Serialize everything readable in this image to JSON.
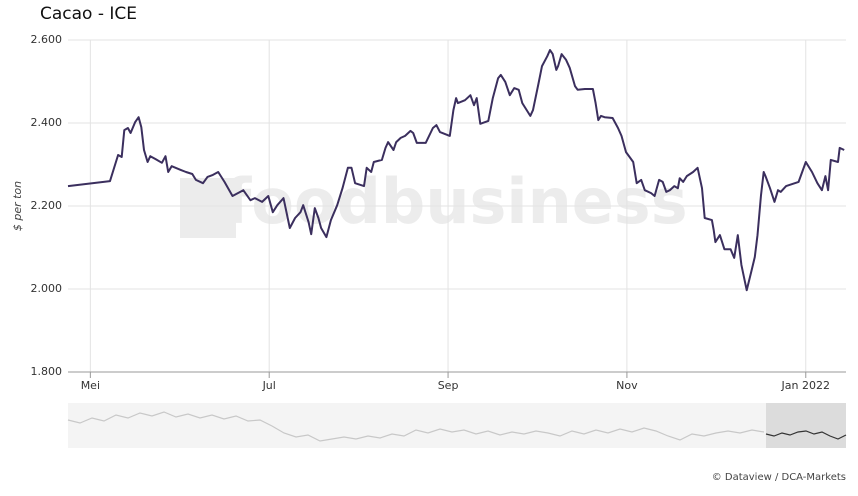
{
  "chart_data": {
    "type": "line",
    "title": "Cacao - ICE",
    "ylabel": "$ per ton",
    "watermark": "foodbusiness",
    "source": "© Dataview / DCA-Markets",
    "color": "#3b2f5e",
    "grid": true,
    "xlim": [
      4.75,
      13.45
    ],
    "xticks": [
      {
        "value": 5,
        "label": "Mei"
      },
      {
        "value": 7,
        "label": "Jul"
      },
      {
        "value": 9,
        "label": "Sep"
      },
      {
        "value": 11,
        "label": "Nov"
      },
      {
        "value": 13,
        "label": "Jan 2022"
      }
    ],
    "ylim": [
      1800,
      2600
    ],
    "yticks": [
      {
        "value": 1800,
        "label": "1.800"
      },
      {
        "value": 2000,
        "label": "2.000"
      },
      {
        "value": 2200,
        "label": "2.200"
      },
      {
        "value": 2400,
        "label": "2.400"
      },
      {
        "value": 2600,
        "label": "2.600"
      }
    ],
    "x": [
      4.75,
      5.22,
      5.31,
      5.35,
      5.38,
      5.42,
      5.45,
      5.5,
      5.54,
      5.57,
      5.6,
      5.64,
      5.67,
      5.73,
      5.8,
      5.84,
      5.87,
      5.91,
      6.01,
      6.07,
      6.14,
      6.18,
      6.26,
      6.31,
      6.37,
      6.43,
      6.5,
      6.59,
      6.71,
      6.79,
      6.84,
      6.92,
      6.99,
      7.04,
      7.09,
      7.16,
      7.23,
      7.29,
      7.35,
      7.38,
      7.44,
      7.47,
      7.51,
      7.55,
      7.58,
      7.64,
      7.69,
      7.76,
      7.82,
      7.88,
      7.92,
      7.96,
      8.06,
      8.09,
      8.14,
      8.17,
      8.26,
      8.3,
      8.33,
      8.39,
      8.42,
      8.47,
      8.52,
      8.58,
      8.61,
      8.65,
      8.75,
      8.83,
      8.87,
      8.91,
      9.02,
      9.06,
      9.09,
      9.11,
      9.19,
      9.25,
      9.29,
      9.32,
      9.36,
      9.45,
      9.5,
      9.56,
      9.59,
      9.64,
      9.69,
      9.74,
      9.79,
      9.83,
      9.92,
      9.95,
      10.01,
      10.05,
      10.11,
      10.14,
      10.17,
      10.21,
      10.23,
      10.27,
      10.32,
      10.36,
      10.42,
      10.45,
      10.53,
      10.62,
      10.65,
      10.68,
      10.71,
      10.75,
      10.84,
      10.9,
      10.94,
      10.99,
      11.03,
      11.07,
      11.11,
      11.16,
      11.2,
      11.27,
      11.31,
      11.36,
      11.4,
      11.44,
      11.48,
      11.53,
      11.57,
      11.59,
      11.63,
      11.67,
      11.74,
      11.79,
      11.84,
      11.87,
      11.95,
      11.97,
      11.99,
      12.04,
      12.09,
      12.16,
      12.2,
      12.24,
      12.28,
      12.34,
      12.39,
      12.43,
      12.46,
      12.5,
      12.53,
      12.55,
      12.6,
      12.65,
      12.69,
      12.72,
      12.78,
      12.92,
      13.0,
      13.07,
      13.13,
      13.18,
      13.22,
      13.25,
      13.28,
      13.36,
      13.38,
      13.43
    ],
    "values": [
      2248,
      2260,
      2323,
      2318,
      2383,
      2388,
      2376,
      2402,
      2414,
      2390,
      2335,
      2306,
      2320,
      2313,
      2304,
      2320,
      2282,
      2296,
      2287,
      2282,
      2277,
      2263,
      2255,
      2270,
      2275,
      2282,
      2258,
      2224,
      2238,
      2214,
      2219,
      2210,
      2224,
      2185,
      2202,
      2219,
      2147,
      2171,
      2185,
      2202,
      2161,
      2132,
      2195,
      2171,
      2147,
      2125,
      2166,
      2202,
      2243,
      2292,
      2292,
      2255,
      2248,
      2292,
      2282,
      2306,
      2311,
      2340,
      2354,
      2335,
      2354,
      2364,
      2369,
      2381,
      2376,
      2352,
      2352,
      2388,
      2395,
      2378,
      2369,
      2431,
      2460,
      2448,
      2455,
      2467,
      2443,
      2460,
      2398,
      2405,
      2460,
      2508,
      2516,
      2499,
      2467,
      2484,
      2480,
      2448,
      2417,
      2431,
      2494,
      2537,
      2561,
      2576,
      2566,
      2528,
      2537,
      2566,
      2552,
      2533,
      2489,
      2480,
      2482,
      2482,
      2448,
      2407,
      2417,
      2414,
      2412,
      2388,
      2369,
      2330,
      2318,
      2306,
      2255,
      2263,
      2238,
      2231,
      2224,
      2263,
      2258,
      2234,
      2238,
      2248,
      2243,
      2267,
      2258,
      2272,
      2282,
      2292,
      2243,
      2171,
      2166,
      2142,
      2113,
      2130,
      2096,
      2096,
      2075,
      2130,
      2058,
      1997,
      2041,
      2077,
      2130,
      2226,
      2282,
      2272,
      2243,
      2210,
      2238,
      2234,
      2248,
      2258,
      2306,
      2282,
      2255,
      2238,
      2272,
      2238,
      2311,
      2306,
      2340,
      2335
    ]
  }
}
